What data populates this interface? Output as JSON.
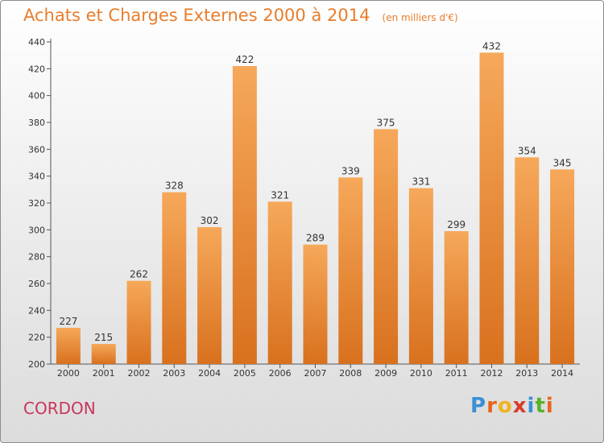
{
  "chart_data": {
    "type": "bar",
    "title": "Achats et Charges Externes 2000 à 2014",
    "subtitle": "(en milliers d'€)",
    "categories": [
      "2000",
      "2001",
      "2002",
      "2003",
      "2004",
      "2005",
      "2006",
      "2007",
      "2008",
      "2009",
      "2010",
      "2011",
      "2012",
      "2013",
      "2014"
    ],
    "values": [
      227,
      215,
      262,
      328,
      302,
      422,
      321,
      289,
      339,
      375,
      331,
      299,
      432,
      354,
      345
    ],
    "ylim": [
      200,
      440
    ],
    "yticks": [
      200,
      220,
      240,
      260,
      280,
      300,
      320,
      340,
      360,
      380,
      400,
      420,
      440
    ],
    "xlabel": "",
    "ylabel": "",
    "grid": false,
    "legend": "none",
    "data_labels": true,
    "colors": {
      "bar_top": "#f6a85a",
      "bar_bottom": "#d8711e",
      "title": "#e87d2c",
      "commune": "#c8365a"
    }
  },
  "commune_name": "CORDON",
  "logo": {
    "letters": [
      "P",
      "r",
      "o",
      "x",
      "i",
      "t",
      "i"
    ],
    "colors": [
      "#3a8fd6",
      "#e8641e",
      "#f2b21e",
      "#d83b2a",
      "#3a8fd6",
      "#58b22c",
      "#e8641e"
    ]
  }
}
